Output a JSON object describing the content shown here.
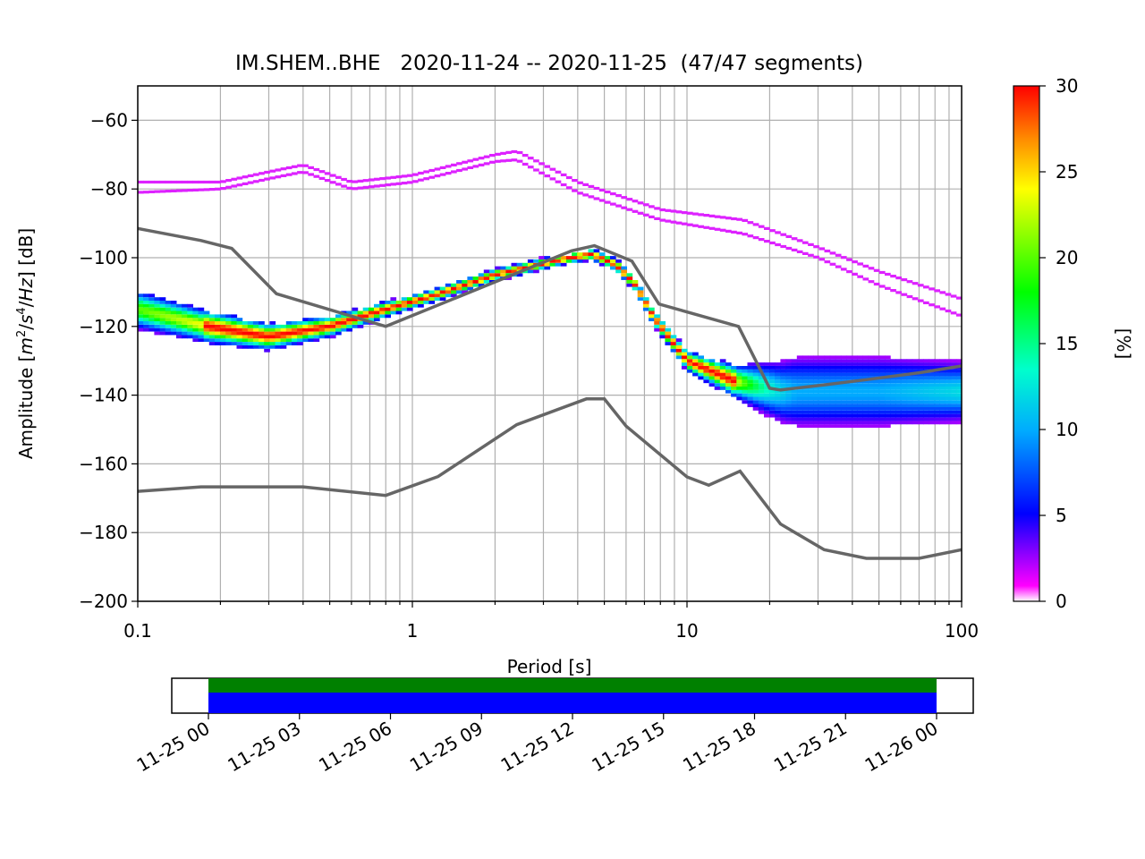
{
  "chart_data": {
    "type": "heatmap",
    "title": "IM.SHEM..BHE   2020-11-24 -- 2020-11-25  (47/47 segments)",
    "xlabel": "Period [s]",
    "ylabel": "Amplitude [m²/s⁴/Hz] [dB]",
    "xscale": "log",
    "xlim": [
      0.1,
      100
    ],
    "ylim": [
      -200,
      -50
    ],
    "grid": true,
    "x_ticks": [
      0.1,
      1,
      10,
      100
    ],
    "x_tick_labels": [
      "0.1",
      "1",
      "10",
      "100"
    ],
    "y_ticks": [
      -60,
      -80,
      -100,
      -120,
      -140,
      -160,
      -180,
      -200
    ],
    "y_tick_labels": [
      "−60",
      "−80",
      "−100",
      "−120",
      "−140",
      "−160",
      "−180",
      "−200"
    ],
    "colorbar": {
      "label": "[%]",
      "range": [
        0,
        30
      ],
      "ticks": [
        0,
        5,
        10,
        15,
        20,
        25,
        30
      ],
      "tick_labels": [
        "0",
        "5",
        "10",
        "15",
        "20",
        "25",
        "30"
      ]
    },
    "nhnm": [
      [
        0.1,
        -91.5
      ],
      [
        0.17,
        -95
      ],
      [
        0.22,
        -97.3
      ],
      [
        0.32,
        -110.5
      ],
      [
        0.8,
        -120
      ],
      [
        3.8,
        -98
      ],
      [
        4.6,
        -96.5
      ],
      [
        6.3,
        -101
      ],
      [
        7.9,
        -113.5
      ],
      [
        15.4,
        -120
      ],
      [
        20,
        -138
      ],
      [
        21.9,
        -138.5
      ],
      [
        31.6,
        -137
      ],
      [
        45,
        -135.5
      ],
      [
        70,
        -133.5
      ],
      [
        100,
        -131.5
      ]
    ],
    "nlnm": [
      [
        0.1,
        -168
      ],
      [
        0.17,
        -166.7
      ],
      [
        0.4,
        -166.7
      ],
      [
        0.8,
        -169.2
      ],
      [
        1.24,
        -163.7
      ],
      [
        2.4,
        -148.6
      ],
      [
        4.3,
        -141.1
      ],
      [
        5,
        -141.1
      ],
      [
        6,
        -149
      ],
      [
        10,
        -163.8
      ],
      [
        12,
        -166.2
      ],
      [
        15.6,
        -162.1
      ],
      [
        21.9,
        -177.5
      ],
      [
        31.6,
        -185
      ],
      [
        45,
        -187.5
      ],
      [
        70,
        -187.5
      ],
      [
        100,
        -185
      ]
    ],
    "upper_bands": [
      {
        "name": "",
        "points": [
          [
            0.1,
            -78
          ],
          [
            0.2,
            -78
          ],
          [
            0.3,
            -75
          ],
          [
            0.4,
            -73
          ],
          [
            0.6,
            -78
          ],
          [
            1,
            -76
          ],
          [
            2,
            -70
          ],
          [
            2.4,
            -69
          ],
          [
            4,
            -78
          ],
          [
            8,
            -86
          ],
          [
            16,
            -89
          ],
          [
            30,
            -97
          ],
          [
            50,
            -104
          ],
          [
            100,
            -112
          ]
        ]
      },
      {
        "name": "",
        "points": [
          [
            0.1,
            -81
          ],
          [
            0.2,
            -80
          ],
          [
            0.3,
            -77
          ],
          [
            0.4,
            -75
          ],
          [
            0.6,
            -80
          ],
          [
            1,
            -78
          ],
          [
            2,
            -72
          ],
          [
            2.4,
            -71.5
          ],
          [
            4,
            -81
          ],
          [
            8,
            -89
          ],
          [
            16,
            -93
          ],
          [
            30,
            -100
          ],
          [
            50,
            -108
          ],
          [
            100,
            -117
          ]
        ]
      }
    ],
    "density_band": {
      "center": [
        [
          0.1,
          -115
        ],
        [
          0.18,
          -120
        ],
        [
          0.3,
          -123
        ],
        [
          0.5,
          -120
        ],
        [
          0.8,
          -115
        ],
        [
          1.2,
          -111
        ],
        [
          2,
          -105
        ],
        [
          3.5,
          -100.5
        ],
        [
          4.5,
          -99
        ],
        [
          5.5,
          -102
        ],
        [
          6.5,
          -108
        ],
        [
          7.5,
          -117
        ],
        [
          10,
          -130
        ],
        [
          15,
          -136
        ],
        [
          22,
          -139
        ],
        [
          100,
          -139
        ]
      ],
      "half_width_db": [
        [
          0.1,
          3
        ],
        [
          0.3,
          2
        ],
        [
          1,
          1
        ],
        [
          4,
          0.8
        ],
        [
          7,
          1
        ],
        [
          10,
          1.5
        ],
        [
          15,
          2.5
        ],
        [
          25,
          6
        ],
        [
          50,
          6
        ],
        [
          100,
          5
        ]
      ],
      "max_percent": 30
    },
    "timeline": {
      "tick_labels": [
        "11-25 00",
        "11-25 03",
        "11-25 06",
        "11-25 09",
        "11-25 12",
        "11-25 15",
        "11-25 18",
        "11-25 21",
        "11-26 00"
      ],
      "coverage_start": "11-25 00",
      "coverage_end": "11-26 00",
      "colors": [
        "#008000",
        "#0000ff"
      ]
    }
  }
}
